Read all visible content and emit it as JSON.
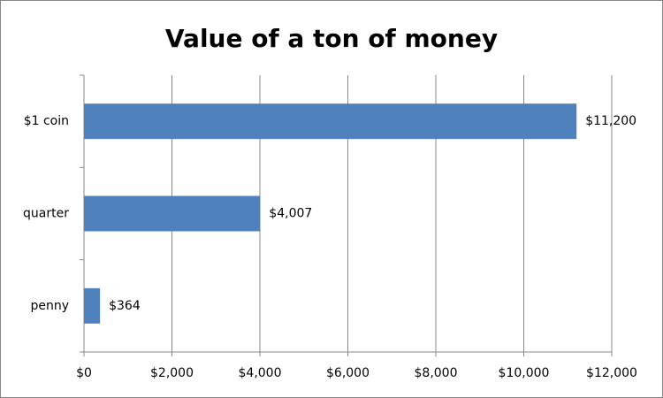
{
  "chart_data": {
    "type": "bar",
    "orientation": "horizontal",
    "title": "Value of a ton of money",
    "categories": [
      "$1 coin",
      "quarter",
      "penny"
    ],
    "values": [
      11200,
      4007,
      364
    ],
    "value_labels": [
      "$11,200",
      "$4,007",
      "$364"
    ],
    "color": "#4f81bd",
    "xlim": [
      0,
      12000
    ],
    "xticks": [
      {
        "value": 0,
        "label": "$0"
      },
      {
        "value": 2000,
        "label": "$2,000"
      },
      {
        "value": 4000,
        "label": "$4,000"
      },
      {
        "value": 6000,
        "label": "$6,000"
      },
      {
        "value": 8000,
        "label": "$8,000"
      },
      {
        "value": 10000,
        "label": "$10,000"
      },
      {
        "value": 12000,
        "label": "$12,000"
      }
    ],
    "grid": true
  }
}
